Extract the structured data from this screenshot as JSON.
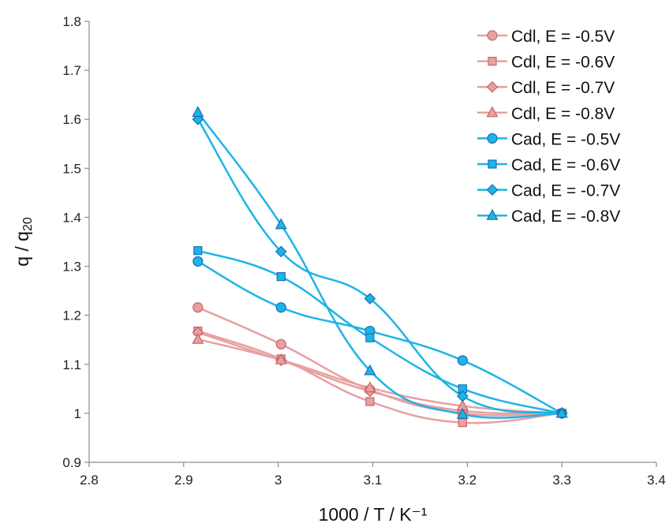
{
  "chart_data": {
    "type": "line",
    "xlabel": "1000 / T / K⁻¹",
    "ylabel_main": "q / q",
    "ylabel_sub": "20",
    "xlim": [
      2.8,
      3.4
    ],
    "ylim": [
      0.9,
      1.8
    ],
    "xticks": [
      "2.8",
      "2.9",
      "3",
      "3.1",
      "3.2",
      "3.3",
      "3.4"
    ],
    "yticks": [
      "0.9",
      "1",
      "1.1",
      "1.2",
      "1.3",
      "1.4",
      "1.5",
      "1.6",
      "1.7",
      "1.8"
    ],
    "grid": false,
    "legend_position": "top-right",
    "x": [
      2.915,
      3.003,
      3.097,
      3.195,
      3.3
    ],
    "series": [
      {
        "name": "Cdl, E = -0.5V",
        "marker": "circle",
        "color": "#E8A0A0",
        "edge": "#C86464",
        "values": [
          1.216,
          1.141,
          1.048,
          1.0,
          1.0
        ]
      },
      {
        "name": "Cdl, E = -0.6V",
        "marker": "square",
        "color": "#E8A0A0",
        "edge": "#C86464",
        "values": [
          1.168,
          1.111,
          1.024,
          0.981,
          1.0
        ]
      },
      {
        "name": "Cdl, E = -0.7V",
        "marker": "diamond",
        "color": "#E8A0A0",
        "edge": "#C86464",
        "values": [
          1.165,
          1.108,
          1.045,
          1.005,
          1.0
        ]
      },
      {
        "name": "Cdl, E = -0.8V",
        "marker": "triangle",
        "color": "#E8A0A0",
        "edge": "#C86464",
        "values": [
          1.151,
          1.109,
          1.052,
          1.015,
          1.0
        ]
      },
      {
        "name": "Cad, E = -0.5V",
        "marker": "circle",
        "color": "#1EB4E6",
        "edge": "#1A6EB4",
        "values": [
          1.31,
          1.216,
          1.168,
          1.108,
          1.0
        ]
      },
      {
        "name": "Cad, E = -0.6V",
        "marker": "square",
        "color": "#1EB4E6",
        "edge": "#1A6EB4",
        "values": [
          1.332,
          1.279,
          1.154,
          1.05,
          1.0
        ]
      },
      {
        "name": "Cad, E = -0.7V",
        "marker": "diamond",
        "color": "#1EB4E6",
        "edge": "#1A6EB4",
        "values": [
          1.6,
          1.33,
          1.234,
          1.035,
          1.0
        ]
      },
      {
        "name": "Cad, E = -0.8V",
        "marker": "triangle",
        "color": "#1EB4E6",
        "edge": "#1A6EB4",
        "values": [
          1.614,
          1.385,
          1.087,
          0.998,
          1.0
        ]
      }
    ]
  }
}
